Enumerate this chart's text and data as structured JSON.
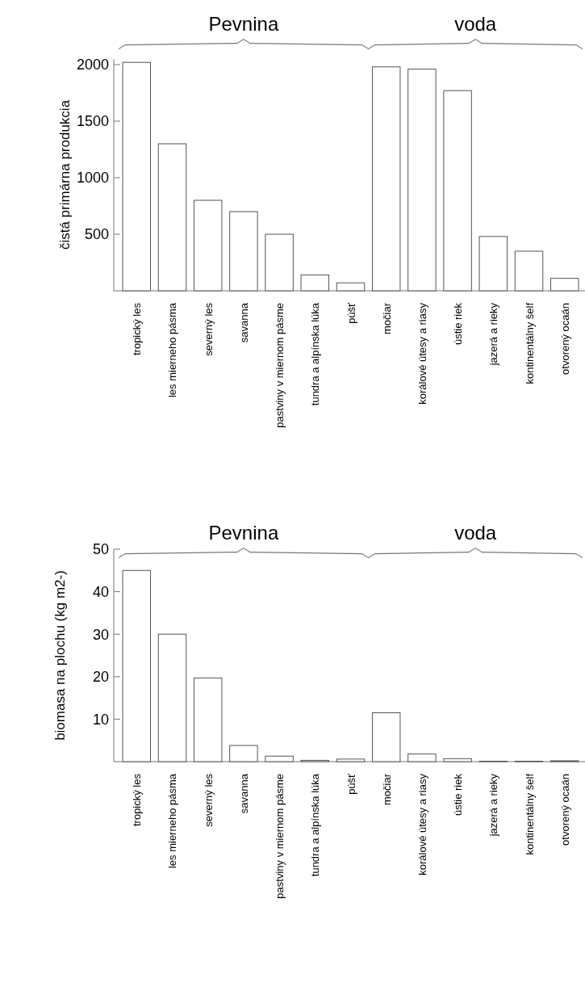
{
  "chart_data": [
    {
      "type": "bar",
      "ylabel": "čistá primárna produkcia",
      "annotations": [
        "Pevnina",
        "voda"
      ],
      "categories": [
        "tropický les",
        "les mierneho pásma",
        "severný les",
        "savanna",
        "pastviny v miernom pásme",
        "tundra a alpínska lúka",
        "púšť",
        "močiar",
        "korálové útesy a riasy",
        "ústie riek",
        "jazerá a rieky",
        "kontinentálny šelf",
        "otvorený ocaán"
      ],
      "values": [
        2020,
        1300,
        800,
        700,
        500,
        140,
        70,
        1980,
        1960,
        1770,
        480,
        350,
        110
      ],
      "color": "#ffffff",
      "ylim": [
        0,
        2050
      ],
      "yticks": [
        500,
        1000,
        1500,
        2000
      ],
      "grid": false
    },
    {
      "type": "bar",
      "ylabel": "biomasa na plochu (kg m2-)",
      "annotations": [
        "Pevnina",
        "voda"
      ],
      "categories": [
        "tropický les",
        "les mierneho pásma",
        "severný les",
        "savanna",
        "pastviny v miernom pásme",
        "tundra a alpínska lúka",
        "púšť",
        "močiar",
        "korálové útesy a riasy",
        "ústie riek",
        "jazerá a rieky",
        "kontinentálny šelf",
        "otvorený ocaán"
      ],
      "values": [
        45,
        30,
        19.7,
        3.8,
        1.3,
        0.3,
        0.6,
        11.5,
        1.8,
        0.7,
        0.1,
        0.1,
        0.2
      ],
      "color": "#ffffff",
      "ylim": [
        0,
        50
      ],
      "yticks": [
        10,
        20,
        30,
        40,
        50
      ],
      "grid": false
    }
  ]
}
